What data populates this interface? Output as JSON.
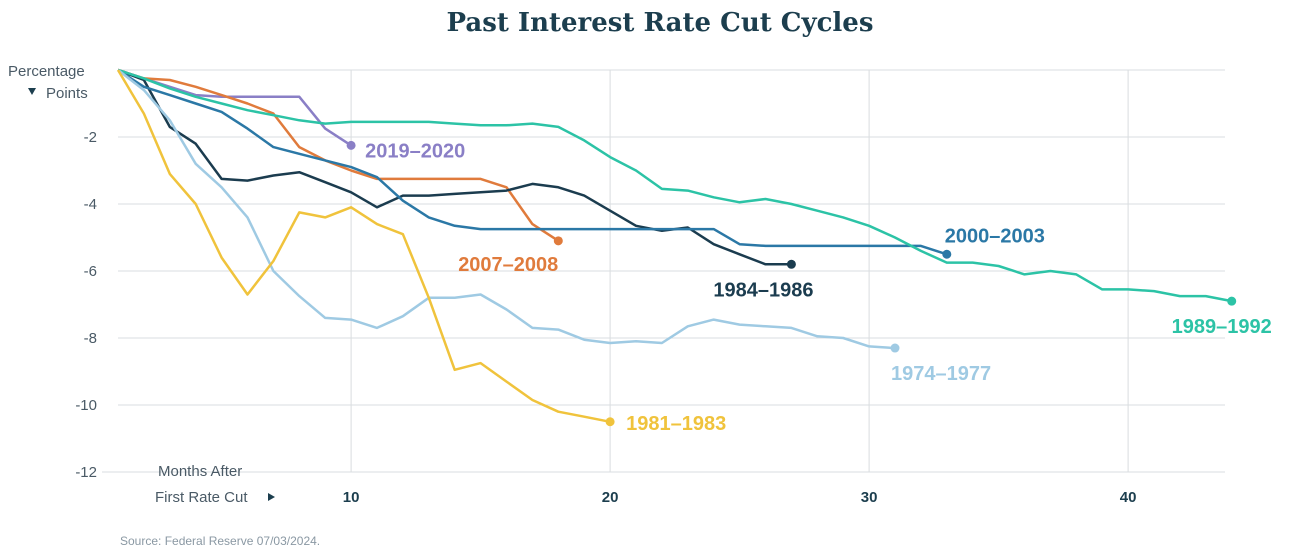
{
  "chart_data": {
    "type": "line",
    "title": "Past Interest Rate Cut Cycles",
    "ylabel_line1": "Percentage",
    "ylabel_line2": "Points",
    "xlabel_line1": "Months After",
    "xlabel_line2": "First Rate Cut",
    "y_ticks": [
      "-2",
      "-4",
      "-6",
      "-8",
      "-10",
      "-12"
    ],
    "x_ticks": [
      "10",
      "20",
      "30",
      "40"
    ],
    "xlim": [
      1,
      44
    ],
    "ylim": [
      -12,
      0
    ],
    "grid": true,
    "source": "Source: Federal Reserve 07/03/2024.",
    "series": [
      {
        "name": "2019–2020",
        "color": "#8a7fc6",
        "x": [
          1,
          2,
          3,
          4,
          5,
          6,
          7,
          8,
          9,
          10
        ],
        "y": [
          0,
          -0.25,
          -0.5,
          -0.75,
          -0.8,
          -0.8,
          -0.8,
          -0.8,
          -1.75,
          -2.25
        ]
      },
      {
        "name": "2007–2008",
        "color": "#e07b3c",
        "x": [
          1,
          2,
          3,
          4,
          5,
          6,
          7,
          8,
          9,
          10,
          11,
          12,
          13,
          14,
          15,
          16,
          17,
          18
        ],
        "y": [
          0,
          -0.25,
          -0.3,
          -0.5,
          -0.75,
          -1.0,
          -1.3,
          -2.3,
          -2.7,
          -3.0,
          -3.25,
          -3.25,
          -3.25,
          -3.25,
          -3.25,
          -3.5,
          -4.6,
          -5.1
        ]
      },
      {
        "name": "1984–1986",
        "color": "#1b3c4f",
        "x": [
          1,
          2,
          3,
          4,
          5,
          6,
          7,
          8,
          9,
          10,
          11,
          12,
          13,
          14,
          15,
          16,
          17,
          18,
          19,
          20,
          21,
          22,
          23,
          24,
          25,
          26,
          27
        ],
        "y": [
          0,
          -0.3,
          -1.7,
          -2.2,
          -3.25,
          -3.3,
          -3.15,
          -3.05,
          -3.35,
          -3.65,
          -4.1,
          -3.75,
          -3.75,
          -3.7,
          -3.65,
          -3.6,
          -3.4,
          -3.5,
          -3.75,
          -4.2,
          -4.65,
          -4.8,
          -4.7,
          -5.2,
          -5.5,
          -5.8,
          -5.8
        ]
      },
      {
        "name": "2000–2003",
        "color": "#2b78a6",
        "x": [
          1,
          2,
          3,
          4,
          5,
          6,
          7,
          8,
          9,
          10,
          11,
          12,
          13,
          14,
          15,
          16,
          17,
          18,
          19,
          20,
          21,
          22,
          23,
          24,
          25,
          26,
          27,
          28,
          29,
          30,
          31,
          32,
          33
        ],
        "y": [
          0,
          -0.5,
          -0.75,
          -1.0,
          -1.25,
          -1.75,
          -2.3,
          -2.5,
          -2.7,
          -2.9,
          -3.2,
          -3.9,
          -4.4,
          -4.65,
          -4.75,
          -4.75,
          -4.75,
          -4.75,
          -4.75,
          -4.75,
          -4.75,
          -4.75,
          -4.75,
          -4.75,
          -5.2,
          -5.25,
          -5.25,
          -5.25,
          -5.25,
          -5.25,
          -5.25,
          -5.25,
          -5.5
        ]
      },
      {
        "name": "1989–1992",
        "color": "#2cc3a6",
        "x": [
          1,
          2,
          3,
          4,
          5,
          6,
          7,
          8,
          9,
          10,
          11,
          12,
          13,
          14,
          15,
          16,
          17,
          18,
          19,
          20,
          21,
          22,
          23,
          24,
          25,
          26,
          27,
          28,
          29,
          30,
          31,
          32,
          33,
          34,
          35,
          36,
          37,
          38,
          39,
          40,
          41,
          42,
          43,
          44
        ],
        "y": [
          0,
          -0.25,
          -0.55,
          -0.8,
          -1.0,
          -1.2,
          -1.35,
          -1.5,
          -1.6,
          -1.55,
          -1.55,
          -1.55,
          -1.55,
          -1.6,
          -1.65,
          -1.65,
          -1.6,
          -1.7,
          -2.1,
          -2.6,
          -3.0,
          -3.55,
          -3.6,
          -3.8,
          -3.95,
          -3.85,
          -4.0,
          -4.2,
          -4.4,
          -4.65,
          -5.0,
          -5.4,
          -5.75,
          -5.75,
          -5.85,
          -6.1,
          -6.0,
          -6.1,
          -6.55,
          -6.55,
          -6.6,
          -6.75,
          -6.75,
          -6.9
        ]
      },
      {
        "name": "1974–1977",
        "color": "#9fcae3",
        "x": [
          1,
          2,
          3,
          4,
          5,
          6,
          7,
          8,
          9,
          10,
          11,
          12,
          13,
          14,
          15,
          16,
          17,
          18,
          19,
          20,
          21,
          22,
          23,
          24,
          25,
          26,
          27,
          28,
          29,
          30,
          31
        ],
        "y": [
          0,
          -0.6,
          -1.5,
          -2.8,
          -3.5,
          -4.4,
          -6.0,
          -6.75,
          -7.4,
          -7.45,
          -7.7,
          -7.35,
          -6.8,
          -6.8,
          -6.7,
          -7.15,
          -7.7,
          -7.75,
          -8.05,
          -8.15,
          -8.1,
          -8.15,
          -7.65,
          -7.45,
          -7.6,
          -7.65,
          -7.7,
          -7.95,
          -8.0,
          -8.25,
          -8.3
        ]
      },
      {
        "name": "1981–1983",
        "color": "#f0c33c",
        "x": [
          1,
          2,
          3,
          4,
          5,
          6,
          7,
          8,
          9,
          10,
          11,
          12,
          13,
          14,
          15,
          16,
          17,
          18,
          19,
          20
        ],
        "y": [
          0,
          -1.3,
          -3.1,
          -4.0,
          -5.6,
          -6.7,
          -5.7,
          -4.25,
          -4.4,
          -4.1,
          -4.6,
          -4.9,
          -6.8,
          -8.95,
          -8.75,
          -9.3,
          -9.85,
          -10.2,
          -10.35,
          -10.5
        ]
      }
    ]
  }
}
